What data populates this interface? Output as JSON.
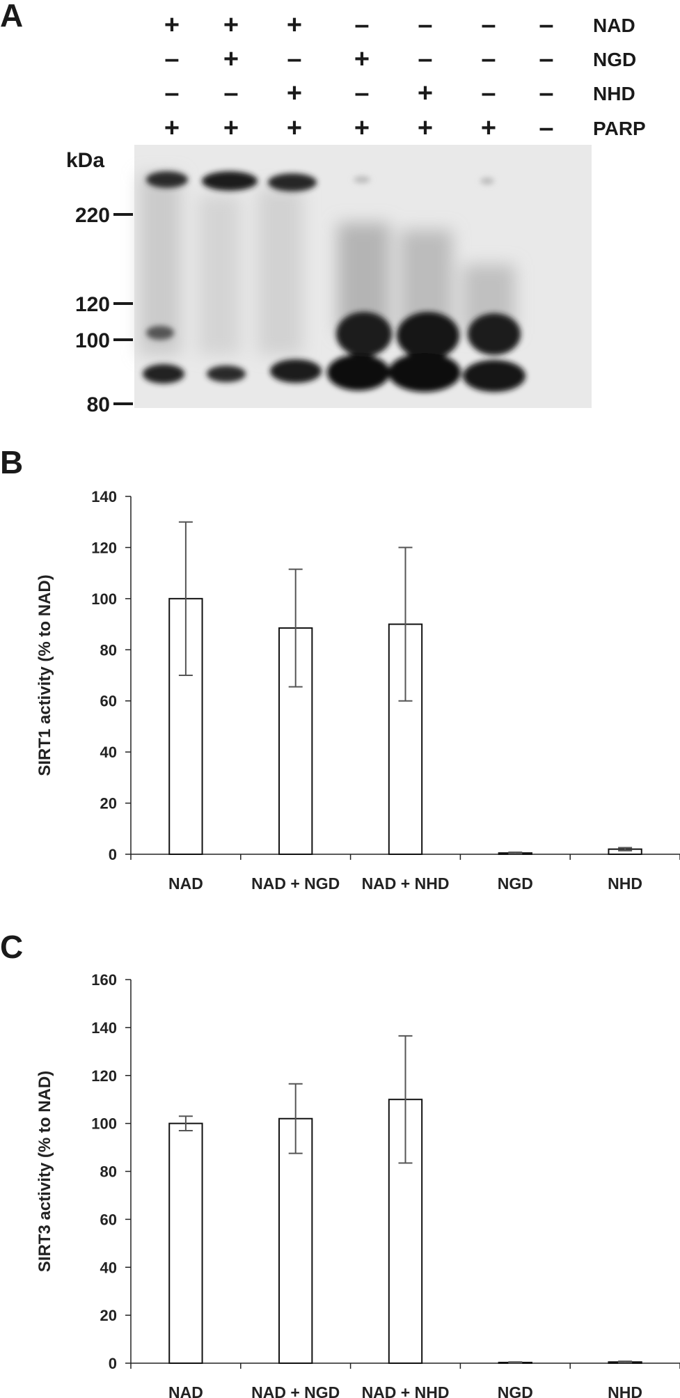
{
  "panel_a": {
    "letter": "A",
    "condition_labels": [
      "NAD",
      "NGD",
      "NHD",
      "PARP"
    ],
    "conditions": [
      [
        "+",
        "+",
        "+",
        "-",
        "-",
        "-",
        "-"
      ],
      [
        "-",
        "+",
        "-",
        "+",
        "-",
        "-",
        "-"
      ],
      [
        "-",
        "-",
        "+",
        "-",
        "+",
        "-",
        "-"
      ],
      [
        "+",
        "+",
        "+",
        "+",
        "+",
        "+",
        "-"
      ]
    ],
    "kda_label": "kDa",
    "markers": [
      "220",
      "120",
      "100",
      "80"
    ]
  },
  "chart_data": [
    {
      "type": "bar",
      "panel": "B",
      "ylabel": "SIRT1 activity (% to NAD)",
      "xlabel": "",
      "ylim": [
        0,
        140
      ],
      "yticks": [
        0,
        20,
        40,
        60,
        80,
        100,
        120,
        140
      ],
      "categories": [
        "NAD",
        "NAD + NGD",
        "NAD + NHD",
        "NGD",
        "NHD"
      ],
      "values": [
        100,
        88.5,
        90,
        0.5,
        2
      ],
      "errors": [
        30,
        23,
        30,
        0.3,
        0.6
      ],
      "grid": false,
      "bar_fill": "#ffffff",
      "bar_stroke": "#111111"
    },
    {
      "type": "bar",
      "panel": "C",
      "ylabel": "SIRT3 activity (% to NAD)",
      "xlabel": "",
      "ylim": [
        0,
        160
      ],
      "yticks": [
        0,
        20,
        40,
        60,
        80,
        100,
        120,
        140,
        160
      ],
      "categories": [
        "NAD",
        "NAD + NGD",
        "NAD + NHD",
        "NGD",
        "NHD"
      ],
      "values": [
        100,
        102,
        110,
        0.3,
        0.5
      ],
      "errors": [
        3,
        14.5,
        26.5,
        0.2,
        0.3
      ],
      "grid": false,
      "bar_fill": "#ffffff",
      "bar_stroke": "#111111"
    }
  ]
}
